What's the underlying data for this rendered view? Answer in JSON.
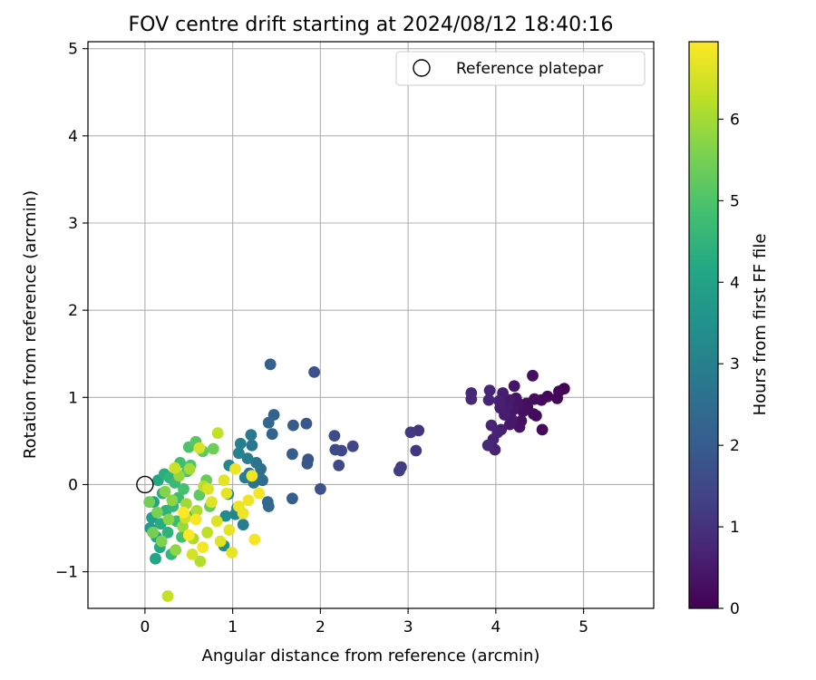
{
  "chart_data": {
    "type": "scatter",
    "title": "FOV centre drift starting at 2024/08/12 18:40:16",
    "xlabel": "Angular distance from reference (arcmin)",
    "ylabel": "Rotation from reference (arcmin)",
    "xlim": [
      -0.65,
      5.8
    ],
    "ylim": [
      -1.42,
      5.08
    ],
    "xticks": [
      0,
      1,
      2,
      3,
      4,
      5
    ],
    "yticks": [
      -1,
      0,
      1,
      2,
      3,
      4,
      5
    ],
    "grid": true,
    "legend": {
      "placement": "top-right",
      "entries": [
        "Reference platepar"
      ]
    },
    "reference_point": {
      "x": 0,
      "y": 0,
      "label": "Reference platepar"
    },
    "colorbar": {
      "label": "Hours from first FF file",
      "colormap": "viridis",
      "range": [
        0,
        6.95
      ],
      "ticks": [
        0,
        1,
        2,
        3,
        4,
        5,
        6
      ]
    },
    "point_columns": [
      "x",
      "y",
      "hours"
    ],
    "points": [
      [
        4.78,
        1.1,
        0.05
      ],
      [
        4.72,
        1.07,
        0.08
      ],
      [
        4.7,
        0.99,
        0.1
      ],
      [
        4.59,
        1.01,
        0.12
      ],
      [
        4.53,
        0.63,
        0.14
      ],
      [
        4.52,
        0.97,
        0.16
      ],
      [
        4.46,
        0.79,
        0.18
      ],
      [
        4.44,
        0.98,
        0.2
      ],
      [
        4.43,
        0.81,
        0.22
      ],
      [
        4.42,
        1.25,
        0.24
      ],
      [
        4.36,
        0.89,
        0.26
      ],
      [
        4.35,
        0.93,
        0.28
      ],
      [
        4.31,
        0.84,
        0.3
      ],
      [
        4.29,
        0.73,
        0.32
      ],
      [
        4.27,
        0.66,
        0.34
      ],
      [
        4.25,
        0.94,
        0.36
      ],
      [
        4.23,
        0.99,
        0.38
      ],
      [
        4.21,
        1.13,
        0.4
      ],
      [
        4.2,
        0.86,
        0.42
      ],
      [
        4.18,
        0.75,
        0.44
      ],
      [
        4.16,
        0.69,
        0.46
      ],
      [
        4.15,
        0.97,
        0.48
      ],
      [
        4.13,
        0.92,
        0.5
      ],
      [
        4.12,
        0.87,
        0.52
      ],
      [
        4.1,
        0.8,
        0.54
      ],
      [
        4.08,
        1.05,
        0.56
      ],
      [
        4.06,
        0.63,
        0.58
      ],
      [
        4.05,
        0.88,
        0.6
      ],
      [
        4.04,
        0.96,
        0.62
      ],
      [
        4.02,
        0.6,
        0.64
      ],
      [
        3.99,
        0.4,
        0.66
      ],
      [
        3.97,
        0.52,
        0.68
      ],
      [
        3.95,
        0.68,
        0.7
      ],
      [
        3.93,
        1.08,
        0.72
      ],
      [
        3.92,
        0.97,
        0.74
      ],
      [
        3.91,
        0.45,
        0.76
      ],
      [
        3.72,
        1.05,
        0.78
      ],
      [
        3.72,
        0.98,
        0.8
      ],
      [
        3.12,
        0.62,
        1.05
      ],
      [
        3.09,
        0.39,
        1.1
      ],
      [
        3.03,
        0.6,
        1.15
      ],
      [
        2.92,
        0.2,
        1.2
      ],
      [
        2.9,
        0.16,
        1.25
      ],
      [
        2.37,
        0.44,
        1.4
      ],
      [
        2.24,
        0.39,
        1.45
      ],
      [
        2.21,
        0.22,
        1.5
      ],
      [
        2.17,
        0.4,
        1.55
      ],
      [
        2.16,
        0.56,
        1.6
      ],
      [
        1.93,
        1.29,
        1.7
      ],
      [
        2.0,
        -0.05,
        1.75
      ],
      [
        1.86,
        0.29,
        1.8
      ],
      [
        1.85,
        0.24,
        1.85
      ],
      [
        1.84,
        0.7,
        1.9
      ],
      [
        1.69,
        0.68,
        2.0
      ],
      [
        1.68,
        0.35,
        2.05
      ],
      [
        1.68,
        -0.16,
        2.1
      ],
      [
        1.43,
        1.38,
        2.15
      ],
      [
        1.47,
        0.8,
        2.2
      ],
      [
        1.45,
        0.58,
        2.25
      ],
      [
        1.41,
        0.71,
        2.3
      ],
      [
        1.41,
        -0.25,
        2.35
      ],
      [
        1.4,
        -0.2,
        2.4
      ],
      [
        1.34,
        0.05,
        2.45
      ],
      [
        1.32,
        0.18,
        2.5
      ],
      [
        1.3,
        0.1,
        2.55
      ],
      [
        1.27,
        0.25,
        2.6
      ],
      [
        1.24,
        0.02,
        2.65
      ],
      [
        1.22,
        0.45,
        2.7
      ],
      [
        1.21,
        0.57,
        2.75
      ],
      [
        1.19,
        0.13,
        2.8
      ],
      [
        1.17,
        0.3,
        2.85
      ],
      [
        1.14,
        0.08,
        2.9
      ],
      [
        1.12,
        -0.46,
        2.95
      ],
      [
        1.09,
        0.47,
        3.0
      ],
      [
        1.07,
        0.36,
        3.05
      ],
      [
        1.05,
        -0.27,
        3.1
      ],
      [
        1.03,
        -0.34,
        3.15
      ],
      [
        0.96,
        0.22,
        3.2
      ],
      [
        0.95,
        -0.11,
        3.25
      ],
      [
        0.92,
        -0.36,
        3.3
      ],
      [
        0.9,
        -0.7,
        3.35
      ],
      [
        0.06,
        -0.5,
        3.8
      ],
      [
        0.08,
        -0.38,
        3.9
      ],
      [
        0.1,
        -0.2,
        4.0
      ],
      [
        0.12,
        -0.85,
        4.05
      ],
      [
        0.13,
        -0.6,
        4.1
      ],
      [
        0.15,
        0.05,
        4.15
      ],
      [
        0.17,
        -0.72,
        4.2
      ],
      [
        0.18,
        -0.45,
        4.25
      ],
      [
        0.2,
        -0.1,
        4.3
      ],
      [
        0.22,
        0.12,
        4.35
      ],
      [
        0.24,
        -0.3,
        4.4
      ],
      [
        0.26,
        -0.55,
        4.45
      ],
      [
        0.28,
        0.08,
        4.5
      ],
      [
        0.3,
        -0.8,
        4.55
      ],
      [
        0.32,
        -0.25,
        4.6
      ],
      [
        0.34,
        0.02,
        4.65
      ],
      [
        0.36,
        -0.42,
        4.7
      ],
      [
        0.38,
        -0.15,
        4.75
      ],
      [
        0.4,
        0.25,
        4.8
      ],
      [
        0.42,
        -0.6,
        4.85
      ],
      [
        0.44,
        -0.05,
        4.9
      ],
      [
        0.48,
        0.15,
        4.95
      ],
      [
        0.5,
        0.43,
        5.0
      ],
      [
        0.52,
        0.22,
        5.05
      ],
      [
        0.56,
        -0.35,
        5.1
      ],
      [
        0.58,
        0.49,
        5.15
      ],
      [
        0.62,
        -0.12,
        5.2
      ],
      [
        0.66,
        0.38,
        5.25
      ],
      [
        0.7,
        0.05,
        5.3
      ],
      [
        0.74,
        -0.25,
        5.35
      ],
      [
        0.78,
        0.41,
        5.4
      ],
      [
        0.05,
        -0.2,
        5.45
      ],
      [
        0.09,
        -0.55,
        5.5
      ],
      [
        0.14,
        -0.32,
        5.55
      ],
      [
        0.19,
        -0.65,
        5.6
      ],
      [
        0.23,
        -0.08,
        5.65
      ],
      [
        0.27,
        -0.4,
        5.7
      ],
      [
        0.31,
        -0.18,
        5.75
      ],
      [
        0.35,
        -0.75,
        5.8
      ],
      [
        0.39,
        0.1,
        5.85
      ],
      [
        0.43,
        -0.48,
        5.9
      ],
      [
        0.47,
        -0.22,
        5.95
      ],
      [
        0.51,
        0.18,
        6.0
      ],
      [
        0.55,
        -0.62,
        6.05
      ],
      [
        0.59,
        -0.3,
        6.1
      ],
      [
        0.63,
        -0.88,
        6.15
      ],
      [
        0.67,
        -0.02,
        6.2
      ],
      [
        0.71,
        -0.55,
        6.25
      ],
      [
        0.83,
        0.59,
        6.3
      ],
      [
        0.26,
        -1.28,
        6.35
      ],
      [
        0.34,
        0.19,
        6.4
      ],
      [
        0.46,
        -0.38,
        6.45
      ],
      [
        0.54,
        -0.8,
        6.5
      ],
      [
        0.62,
        0.42,
        6.55
      ],
      [
        0.72,
        -0.05,
        6.58
      ],
      [
        0.76,
        -0.2,
        6.6
      ],
      [
        0.82,
        -0.42,
        6.62
      ],
      [
        0.86,
        -0.65,
        6.64
      ],
      [
        0.9,
        0.05,
        6.66
      ],
      [
        0.93,
        -0.1,
        6.68
      ],
      [
        0.96,
        -0.52,
        6.7
      ],
      [
        0.99,
        -0.78,
        6.72
      ],
      [
        1.03,
        0.18,
        6.74
      ],
      [
        1.07,
        -0.25,
        6.76
      ],
      [
        1.12,
        -0.33,
        6.78
      ],
      [
        1.18,
        -0.18,
        6.8
      ],
      [
        1.22,
        0.1,
        6.82
      ],
      [
        1.25,
        -0.63,
        6.84
      ],
      [
        1.3,
        -0.1,
        6.86
      ],
      [
        0.66,
        -0.72,
        6.88
      ],
      [
        0.58,
        -0.4,
        6.9
      ],
      [
        0.5,
        -0.58,
        6.92
      ],
      [
        0.44,
        -0.32,
        6.94
      ]
    ]
  }
}
